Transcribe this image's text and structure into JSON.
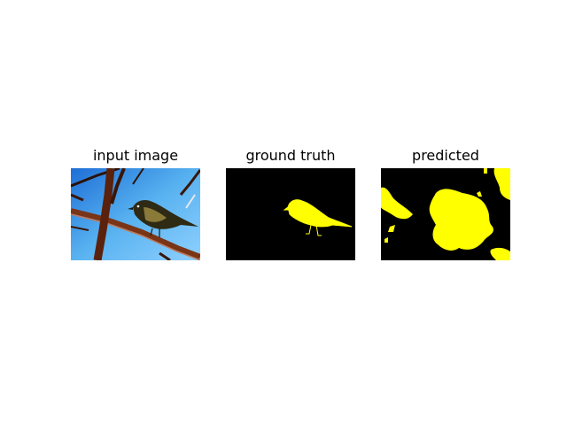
{
  "panels": [
    {
      "title": "input image"
    },
    {
      "title": "ground truth"
    },
    {
      "title": "predicted"
    }
  ],
  "colors": {
    "background": "#ffffff",
    "mask_fill": "#ffff00",
    "mask_background": "#000000",
    "sky": "#5aa8e8",
    "branch": "#6b2a12"
  }
}
